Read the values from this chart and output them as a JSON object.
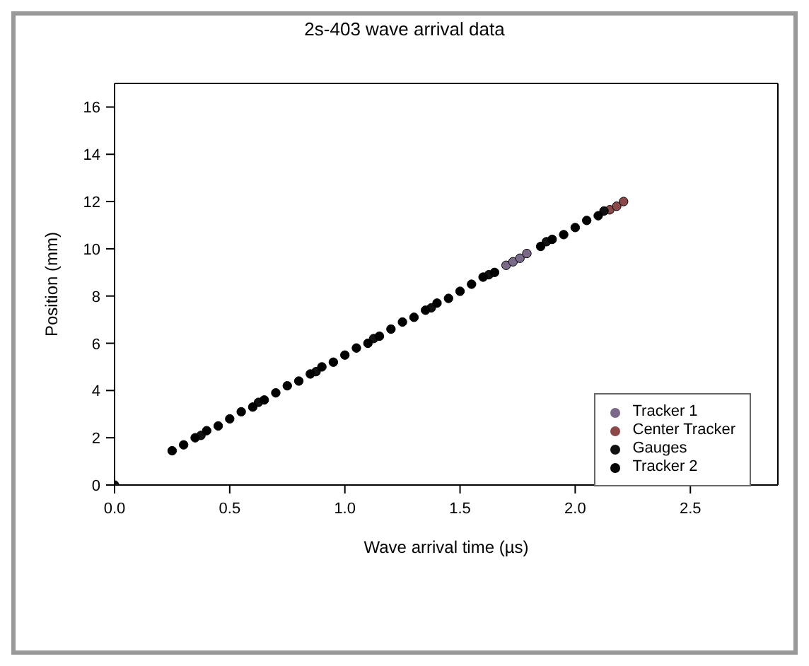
{
  "chart_data": {
    "type": "scatter",
    "title": "2s-403 wave arrival data",
    "xlabel": "Wave arrival time (µs)",
    "ylabel": "Position (mm)",
    "xlim": [
      0,
      2.88
    ],
    "xticks": [
      {
        "value": 0,
        "label": "0.0"
      },
      {
        "value": 0.5,
        "label": "0.5"
      },
      {
        "value": 1,
        "label": "1.0"
      },
      {
        "value": 1.5,
        "label": "1.5"
      },
      {
        "value": 2,
        "label": "2.0"
      },
      {
        "value": 2.5,
        "label": "2.5"
      }
    ],
    "ylim": [
      0,
      17
    ],
    "yticks": [
      0,
      2,
      4,
      6,
      8,
      10,
      12,
      14,
      16
    ],
    "legend": "bottom right",
    "marker": "circle",
    "series": [
      {
        "name": "Tracker 1",
        "color": "#7a6a88",
        "x": [
          1.7,
          1.73,
          1.76,
          1.79
        ],
        "values": [
          9.3,
          9.45,
          9.6,
          9.8
        ]
      },
      {
        "name": "Center Tracker",
        "color": "#8a4848",
        "x": [
          2.15,
          2.18,
          2.21
        ],
        "values": [
          11.65,
          11.8,
          12.0
        ]
      },
      {
        "name": "Gauges",
        "color": "#111111",
        "x": [
          0,
          0.375,
          0.625,
          0.875,
          1.125,
          1.375,
          1.625,
          1.875,
          2.125
        ],
        "values": [
          0,
          2.1,
          3.5,
          4.8,
          6.2,
          7.5,
          8.9,
          10.3,
          11.6
        ]
      },
      {
        "name": "Tracker 2",
        "color": "#000000",
        "x": [
          0.25,
          0.3,
          0.35,
          0.4,
          0.45,
          0.5,
          0.55,
          0.6,
          0.65,
          0.7,
          0.75,
          0.8,
          0.85,
          0.9,
          0.95,
          1.0,
          1.05,
          1.1,
          1.15,
          1.2,
          1.25,
          1.3,
          1.35,
          1.4,
          1.45,
          1.5,
          1.55,
          1.6,
          1.65,
          1.85,
          1.9,
          1.95,
          2.0,
          2.05,
          2.1
        ],
        "values": [
          1.45,
          1.7,
          2.0,
          2.3,
          2.5,
          2.8,
          3.1,
          3.3,
          3.6,
          3.9,
          4.2,
          4.4,
          4.7,
          5.0,
          5.2,
          5.5,
          5.8,
          6.0,
          6.3,
          6.6,
          6.9,
          7.1,
          7.4,
          7.7,
          7.9,
          8.2,
          8.5,
          8.8,
          9.0,
          10.1,
          10.4,
          10.6,
          10.9,
          11.2,
          11.4
        ]
      }
    ]
  }
}
